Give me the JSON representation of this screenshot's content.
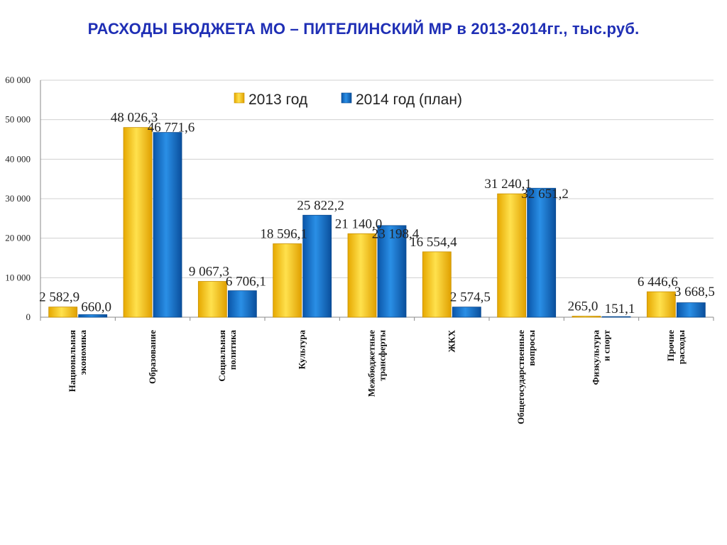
{
  "title": "РАСХОДЫ БЮДЖЕТА МО – ПИТЕЛИНСКИЙ МР в 2013-2014гг., тыс.руб.",
  "colors": {
    "title": "#1f2fb5",
    "series_2013": "#ffcc00",
    "series_2014": "#0a6fc8",
    "gridline": "#d0d0d0",
    "axis": "#888888"
  },
  "chart_data": {
    "type": "bar",
    "title": "",
    "xlabel": "",
    "ylabel": "",
    "ylim": [
      0,
      60000
    ],
    "grid": true,
    "legend_position": "top-right",
    "y_ticks": [
      {
        "value": 0,
        "label": "0"
      },
      {
        "value": 10000,
        "label": "10 000"
      },
      {
        "value": 20000,
        "label": "20 000"
      },
      {
        "value": 30000,
        "label": "30 000"
      },
      {
        "value": 40000,
        "label": "40 000"
      },
      {
        "value": 50000,
        "label": "50 000"
      },
      {
        "value": 60000,
        "label": "60 000"
      }
    ],
    "categories": [
      [
        "Национальная",
        "экономика"
      ],
      [
        "Образование"
      ],
      [
        "Социальная",
        "политика"
      ],
      [
        "Культура"
      ],
      [
        "Межбюджетные",
        "трансферты"
      ],
      [
        "ЖКХ"
      ],
      [
        "Общегосударственные",
        "вопросы"
      ],
      [
        "Физкультура",
        "и спорт"
      ],
      [
        "Прочие",
        "расходы"
      ]
    ],
    "series": [
      {
        "name": "2013 год",
        "values": [
          2582.9,
          48026.3,
          9067.3,
          18596.1,
          21140.0,
          16554.4,
          31240.1,
          265.0,
          6446.6
        ],
        "labels": [
          "2 582,9",
          "48 026,3",
          "9 067,3",
          "18 596,1",
          "21 140,0",
          "16 554,4",
          "31 240,1",
          "265,0",
          "6 446,6"
        ]
      },
      {
        "name": "2014 год (план)",
        "values": [
          660.0,
          46771.6,
          6706.1,
          25822.2,
          23198.4,
          2574.5,
          32651.2,
          151.1,
          3668.5
        ],
        "labels": [
          "660,0",
          "46 771,6",
          "6 706,1",
          "25 822,2",
          "23 198,4",
          "2 574,5",
          "32 651,2",
          "151,1",
          "3 668,5"
        ]
      }
    ]
  }
}
